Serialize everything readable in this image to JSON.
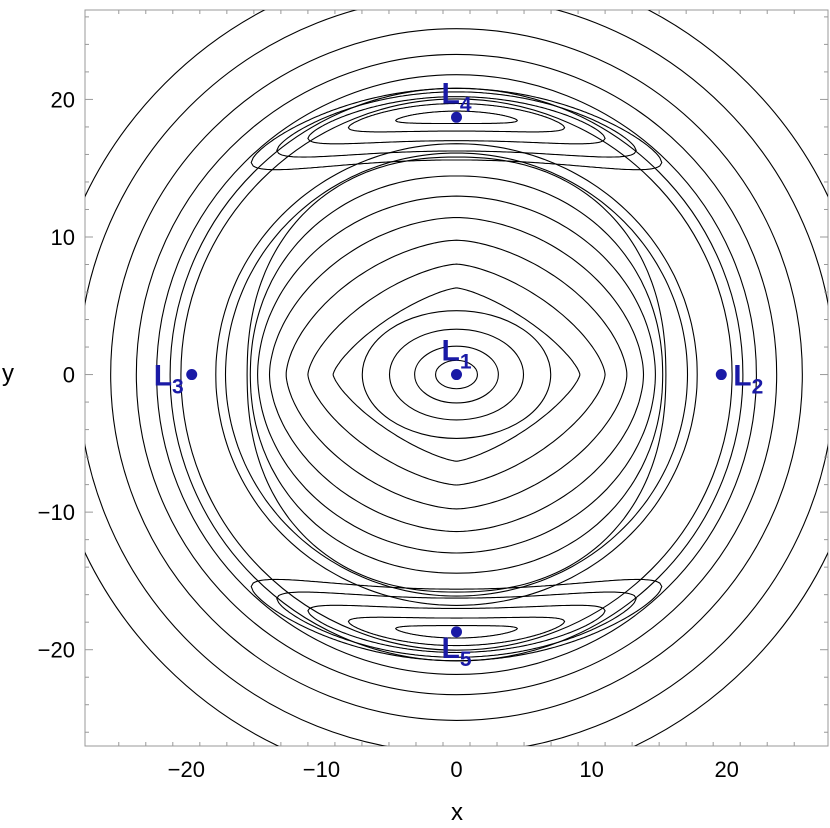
{
  "chart_data": {
    "type": "contour",
    "xlabel": "x",
    "ylabel": "y",
    "xlim": [
      -27.5,
      27.5
    ],
    "ylim": [
      -27,
      26.5
    ],
    "x_ticks": [
      -20,
      -10,
      0,
      10,
      20
    ],
    "y_ticks": [
      -20,
      -10,
      0,
      10,
      20
    ],
    "x_tick_labels": [
      "−20",
      "−10",
      "0",
      "10",
      "20"
    ],
    "y_tick_labels": [
      "−20",
      "−10",
      "0",
      "10",
      "20"
    ],
    "contour_color": "#000000",
    "point_color": "#1a1aa6",
    "points": [
      {
        "name": "L",
        "sub": "1",
        "x": 0,
        "y": 0,
        "label_pos": "above"
      },
      {
        "name": "L",
        "sub": "2",
        "x": 19.6,
        "y": 0,
        "label_pos": "right"
      },
      {
        "name": "L",
        "sub": "3",
        "x": -19.6,
        "y": 0,
        "label_pos": "left"
      },
      {
        "name": "L",
        "sub": "4",
        "x": 0,
        "y": 18.7,
        "label_pos": "above"
      },
      {
        "name": "L",
        "sub": "5",
        "x": 0,
        "y": -18.7,
        "label_pos": "below"
      }
    ],
    "inner_ovals": [
      1.0,
      2.0,
      3.2,
      4.5
    ],
    "inner_shapes": [
      6.3,
      8.0,
      9.7,
      11.3,
      12.8,
      14.2,
      15.5
    ],
    "near_separatrix": [
      16.6,
      17.3
    ],
    "banana_levels": [
      {
        "r": 18.7,
        "w": 4.5,
        "h": 0.9
      },
      {
        "r": 18.7,
        "w": 8.0,
        "h": 2.0
      },
      {
        "r": 18.6,
        "w": 11.0,
        "h": 3.2
      },
      {
        "r": 18.4,
        "w": 13.3,
        "h": 4.3
      },
      {
        "r": 18.2,
        "w": 15.2,
        "h": 5.2
      }
    ],
    "outer_rings": [
      20.4,
      21.2,
      22.2,
      23.7,
      25.6,
      28.0,
      30.5
    ]
  }
}
